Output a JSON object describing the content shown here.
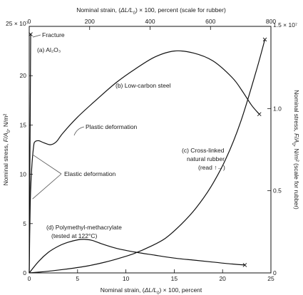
{
  "chart_data": {
    "type": "line",
    "x_bottom_label_prefix": "Nominal strain, (",
    "x_bottom_label_math": "ΔL/L",
    "x_bottom_label_sub": "0",
    "x_bottom_label_suffix": ") × 100, percent",
    "x_top_label_prefix": "Nominal strain, (",
    "x_top_label_math": "ΔL/L",
    "x_top_label_sub": "0",
    "x_top_label_suffix": ") × 100, percent (scale for rubber)",
    "y_left_label_prefix": "Nominal stress, ",
    "y_left_label_math": "F/A",
    "y_left_label_sub": "0",
    "y_left_label_suffix": ", N/m²",
    "y_right_label_prefix": "Nominal stress, ",
    "y_right_label_math": "F/A",
    "y_right_label_sub": "0",
    "y_right_label_suffix": ", N/m² (scale for rubber)",
    "x_bottom": {
      "range": [
        0,
        25
      ],
      "ticks": [
        0,
        5,
        10,
        15,
        20,
        25
      ],
      "labels": [
        "0",
        "5",
        "10",
        "15",
        "20",
        "25"
      ]
    },
    "x_top": {
      "range": [
        0,
        800
      ],
      "ticks": [
        0,
        200,
        400,
        600,
        800
      ],
      "labels": [
        "0",
        "200",
        "400",
        "600",
        "800"
      ]
    },
    "y_left": {
      "range": [
        0,
        25
      ],
      "ticks": [
        0,
        5,
        10,
        15,
        20,
        25
      ],
      "labels": [
        "0",
        "5",
        "10",
        "15",
        "20",
        "25 × 10⁷"
      ]
    },
    "y_right": {
      "range": [
        0,
        1.5
      ],
      "ticks": [
        0,
        0.5,
        1.0,
        1.5
      ],
      "labels": [
        "0",
        "0.5",
        "1.0",
        "1.5 × 10⁷"
      ]
    },
    "grid": false,
    "series": [
      {
        "id": "al2o3",
        "axis_x": "bottom",
        "axis_y": "left",
        "x": [
          0,
          0.05,
          0.1,
          0.15
        ],
        "y": [
          0,
          8,
          16,
          24.2
        ],
        "fracture": true
      },
      {
        "id": "steel",
        "axis_x": "bottom",
        "axis_y": "left",
        "x": [
          0,
          0.1,
          0.25,
          0.45,
          0.6,
          1.0,
          1.5,
          2.2,
          2.8,
          3.5,
          5,
          7,
          9,
          11,
          13,
          15,
          17,
          19,
          21,
          22,
          23,
          23.8
        ],
        "y": [
          0,
          7,
          10.5,
          12.8,
          13.3,
          13.4,
          13.2,
          13.0,
          13.3,
          14.2,
          15.8,
          17.6,
          19.3,
          20.7,
          21.9,
          22.5,
          22.3,
          21.5,
          19.8,
          18.5,
          17.0,
          16.1
        ],
        "fracture": true
      },
      {
        "id": "pmma",
        "axis_x": "bottom",
        "axis_y": "left",
        "x": [
          0,
          1,
          2,
          3,
          4,
          5,
          5.7,
          6.5,
          7.5,
          9,
          11,
          13,
          15,
          17,
          19,
          21,
          22.3
        ],
        "y": [
          0,
          1.2,
          2.1,
          2.7,
          3.1,
          3.35,
          3.4,
          3.3,
          2.95,
          2.5,
          2.1,
          1.8,
          1.5,
          1.3,
          1.1,
          0.9,
          0.8
        ],
        "fracture": true
      },
      {
        "id": "rubber",
        "axis_x": "top",
        "axis_y": "right",
        "x": [
          0,
          50,
          100,
          150,
          200,
          250,
          300,
          350,
          400,
          450,
          500,
          550,
          600,
          650,
          700,
          750,
          780
        ],
        "y": [
          0,
          0.008,
          0.018,
          0.03,
          0.045,
          0.065,
          0.09,
          0.12,
          0.16,
          0.21,
          0.29,
          0.39,
          0.52,
          0.69,
          0.92,
          1.22,
          1.42
        ],
        "fracture": true
      }
    ],
    "annotations": {
      "fracture": "Fracture",
      "al2o3": "(a) Al₂O₃",
      "steel": "(b) Low-carbon steel",
      "plastic": "Plastic deformation",
      "rubber_1": "(c) Cross-linked",
      "rubber_2": "natural rubber",
      "rubber_3": "(read ↑→)",
      "elastic": "Elastic deformation",
      "pmma_1": "(d) Polymethyl-methacrylate",
      "pmma_2": "(tested at 122°C)"
    }
  }
}
